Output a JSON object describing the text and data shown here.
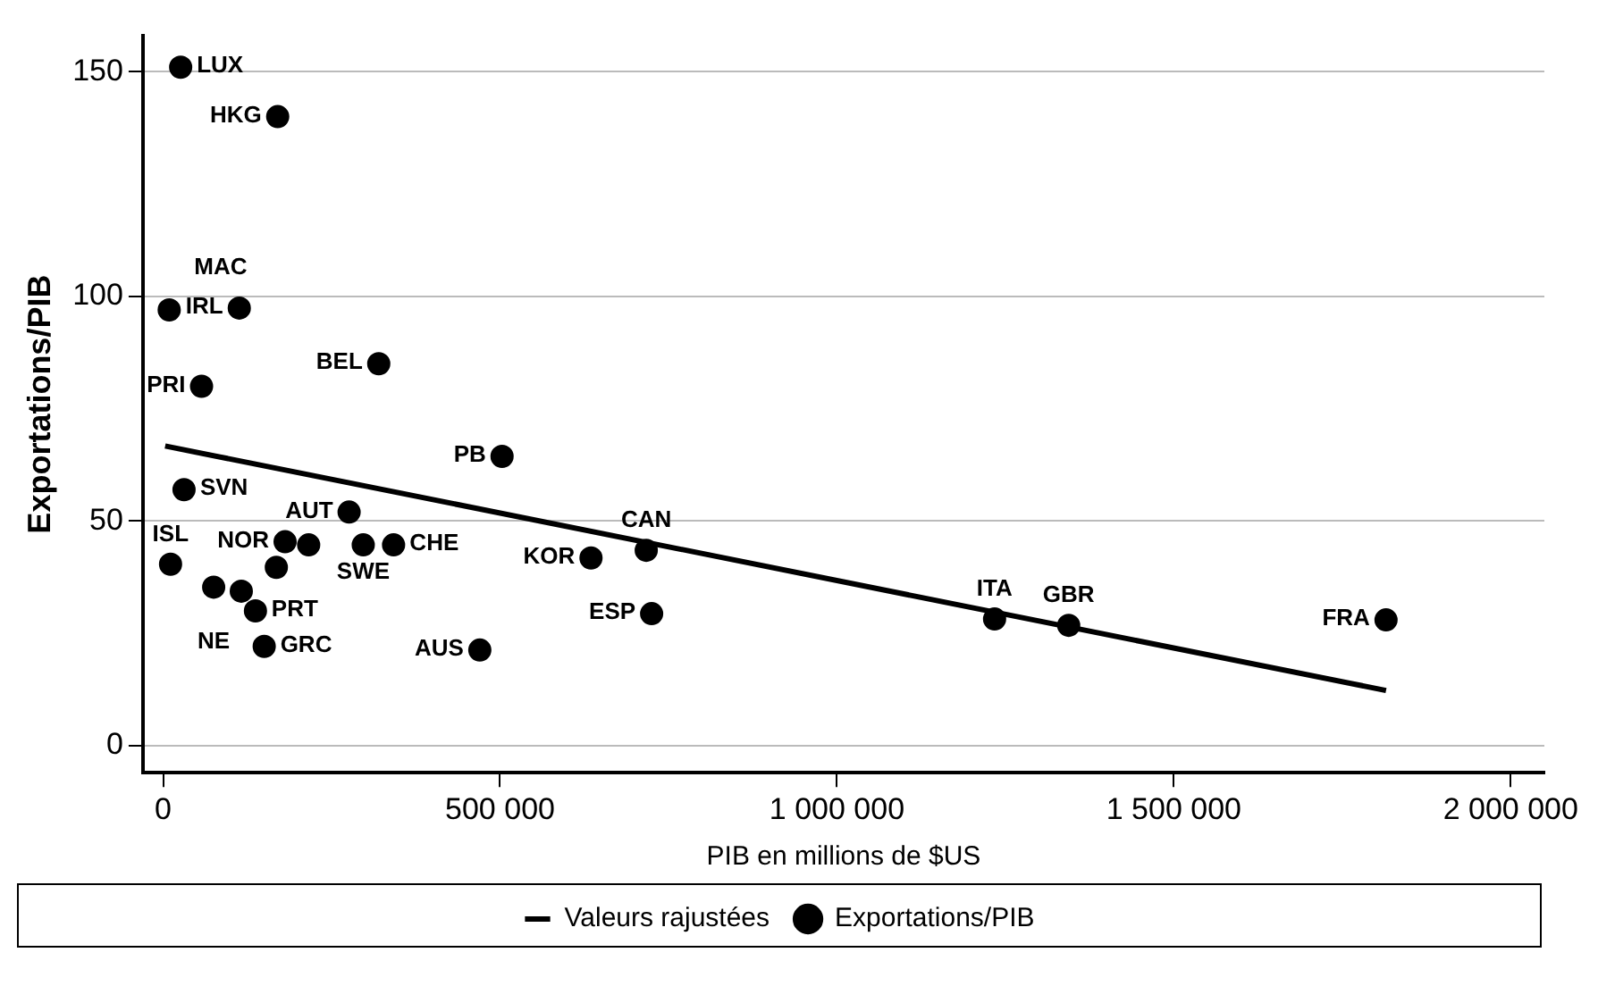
{
  "chart_data": {
    "type": "scatter",
    "xlabel": "PIB en millions de $US",
    "ylabel": "Exportations/PIB",
    "xlim": [
      -30000,
      2050000
    ],
    "ylim": [
      -6,
      158
    ],
    "xticks": [
      0,
      {
        "value": 500000,
        "label": "500 000"
      },
      {
        "value": 1000000,
        "label": "1 000 000"
      },
      {
        "value": 1500000,
        "label": "1 500 000"
      },
      {
        "value": 2000000,
        "label": "2 000 000"
      }
    ],
    "yticks": [
      0,
      50,
      100,
      150
    ],
    "grid": "y",
    "legend": "bottom",
    "series": [
      {
        "name": "Valeurs rajustées",
        "type": "line",
        "marker": "none",
        "color": "#000000",
        "x": [
          3000,
          1815000
        ],
        "values": [
          66.7,
          12.3
        ]
      },
      {
        "name": "Exportations/PIB",
        "marker": "circle",
        "color": "#000000",
        "x": [
          26000,
          170000,
          9000,
          113000,
          57000,
          320000,
          503000,
          31000,
          276000,
          11000,
          181000,
          216000,
          297000,
          342000,
          168000,
          75000,
          116000,
          137000,
          150000,
          470000,
          635000,
          717000,
          725000,
          1234000,
          1344000,
          1815000
        ],
        "values": [
          151,
          140,
          97,
          97.4,
          80,
          85,
          64.4,
          57,
          52,
          40.4,
          45.4,
          44.7,
          44.7,
          44.7,
          39.7,
          35.3,
          34.4,
          30,
          22.1,
          21.3,
          41.8,
          43.5,
          29.4,
          28.2,
          26.8,
          28
        ],
        "value_labels": [
          "LUX",
          "HKG",
          "MAC",
          "IRL",
          "PRI",
          "BEL",
          "PB",
          "SVN",
          "AUT",
          "ISL",
          "NOR",
          null,
          "SWE",
          "CHE",
          null,
          "NE",
          null,
          "PRT",
          "GRC",
          "AUS",
          "KOR",
          "CAN",
          "ESP",
          "ITA",
          "GBR",
          "FRA"
        ]
      }
    ]
  }
}
